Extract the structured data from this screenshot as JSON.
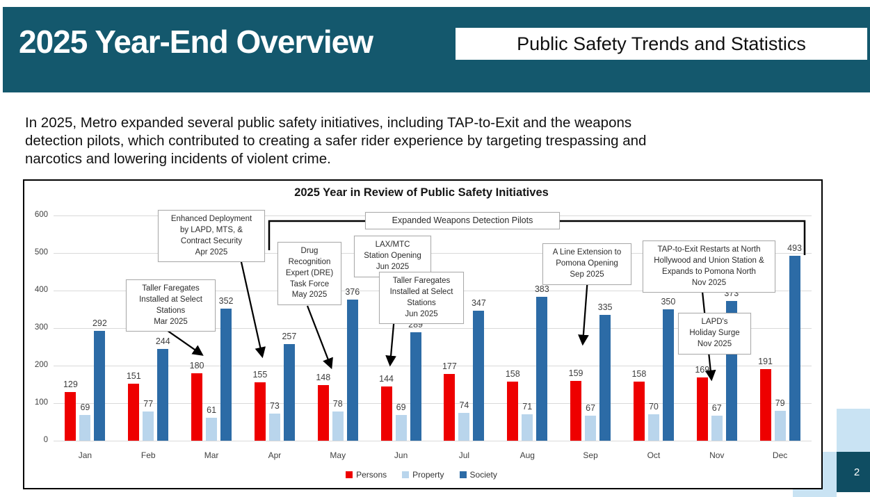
{
  "header": {
    "title": "2025 Year-End Overview",
    "subtitle": "Public Safety Trends and Statistics"
  },
  "intro_text": "In 2025, Metro expanded several public safety initiatives, including TAP-to-Exit and the weapons\ndetection pilots, which contributed to creating a safer rider experience by targeting trespassing and\nnarcotics and lowering incidents of violent crime.",
  "page_number": "2",
  "colors": {
    "header_teal": "#14586D",
    "accent_teal": "#0F4D62",
    "pale_blue": "#C9E3F3",
    "grid_gray": "#D9D9D9",
    "annotation_border": "#A9A9A9"
  },
  "chart_data": {
    "type": "bar",
    "title": "2025 Year in Review of Public Safety Initiatives",
    "categories": [
      "Jan",
      "Feb",
      "Mar",
      "Apr",
      "May",
      "Jun",
      "Jul",
      "Aug",
      "Sep",
      "Oct",
      "Nov",
      "Dec"
    ],
    "series": [
      {
        "name": "Persons",
        "color": "#EE0000",
        "values": [
          129,
          151,
          180,
          155,
          148,
          144,
          177,
          158,
          159,
          158,
          169,
          191
        ]
      },
      {
        "name": "Property",
        "color": "#B9D5EC",
        "values": [
          69,
          77,
          61,
          73,
          78,
          69,
          74,
          71,
          67,
          70,
          67,
          79
        ]
      },
      {
        "name": "Society",
        "color": "#2C6BA6",
        "values": [
          292,
          244,
          352,
          257,
          376,
          289,
          347,
          383,
          335,
          350,
          373,
          493
        ]
      }
    ],
    "ylim": [
      0,
      600
    ],
    "ytick_step": 100,
    "grid": true,
    "legend_position": "bottom",
    "annotations": [
      {
        "id": "enhanced-deployment",
        "text": "Enhanced Deployment\nby LAPD, MTS, &\nContract Security\nApr 2025"
      },
      {
        "id": "weapons-pilots",
        "text": "Expanded Weapons Detection Pilots"
      },
      {
        "id": "dre-task-force",
        "text": "Drug\nRecognition\nExpert (DRE)\nTask Force\nMay 2025"
      },
      {
        "id": "lax-mtc",
        "text": "LAX/MTC\nStation Opening\nJun 2025"
      },
      {
        "id": "faregates-mar",
        "text": "Taller Faregates\nInstalled at Select\nStations\nMar 2025"
      },
      {
        "id": "faregates-jun",
        "text": "Taller Faregates\nInstalled at Select\nStations\nJun 2025"
      },
      {
        "id": "a-line-pomona",
        "text": "A Line Extension to\nPomona Opening\nSep 2025"
      },
      {
        "id": "tap-to-exit",
        "text": "TAP-to-Exit Restarts at North\nHollywood and Union Station &\nExpands to Pomona North\nNov 2025"
      },
      {
        "id": "lapd-holiday-surge",
        "text": "LAPD's\nHoliday Surge\nNov 2025"
      }
    ]
  }
}
